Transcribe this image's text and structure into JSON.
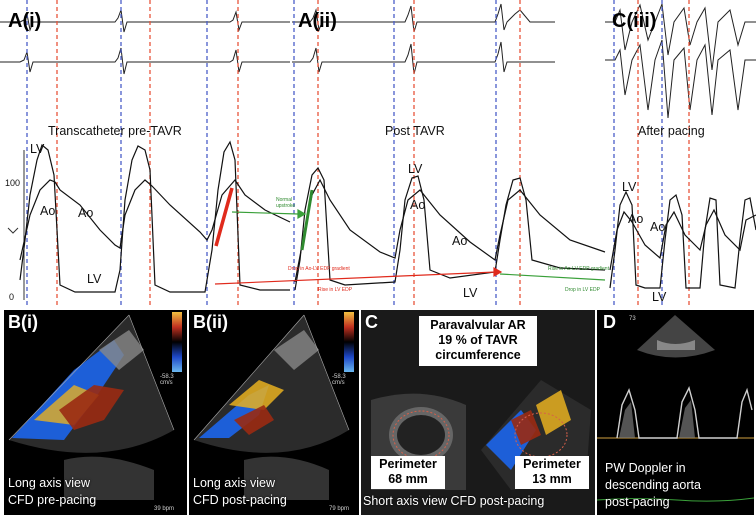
{
  "top": {
    "labels": {
      "a_i": "A(i)",
      "a_ii": "A(ii)",
      "c_iii": "C(iii)"
    },
    "captions": {
      "pre": "Transcatheter pre-TAVR",
      "post": "Post TAVR",
      "pacing": "After pacing"
    },
    "axis": {
      "tick_100": "100",
      "tick_0": "0"
    },
    "traces": {
      "lv1": "LV",
      "ao1": "Ao",
      "ao2": "Ao",
      "lv2": "LV",
      "lv3": "LV",
      "ao3": "Ao",
      "ao4": "Ao",
      "lv4": "LV",
      "lv5": "LV",
      "ao5": "Ao",
      "ao6": "Ao",
      "lv6": "LV"
    },
    "annotations": {
      "normal_upstroke": "Normal upstroke",
      "drop_ao_lv_gradient": "Drop in Ao-LV EDP gradient",
      "rise_lv_edp": "Rise in LV EDP",
      "rise_ao_lv_gradient": "Rise in Ao-LV EDP gradient",
      "drop_lv_edp": "Drop in LV EDP"
    },
    "colors": {
      "red_marker": "#e8553b",
      "blue_marker": "#4a5ec8",
      "red_arrow": "#e02a1c",
      "green_arrow": "#3aa03a"
    }
  },
  "panels": {
    "b_i": {
      "label": "B(i)",
      "caption_line1": "Long axis view",
      "caption_line2": "CFD pre-pacing",
      "bpm": "39 bpm",
      "scale": "-58.3 cm/s"
    },
    "b_ii": {
      "label": "B(ii)",
      "caption_line1": "Long axis view",
      "caption_line2": "CFD post-pacing",
      "bpm": "79 bpm",
      "scale": "-58.3 cm/s"
    },
    "c": {
      "label": "C",
      "title_line1": "Paravalvular AR",
      "title_line2": "19 % of TAVR",
      "title_line3": "circumference",
      "perim1_label": "Perimeter",
      "perim1_value": "68 mm",
      "perim2_label": "Perimeter",
      "perim2_value": "13 mm",
      "caption": "Short axis view CFD post-pacing"
    },
    "d": {
      "label": "D",
      "caption_line1": "PW Doppler in",
      "caption_line2": "descending aorta",
      "caption_line3": "post-pacing",
      "mode": "73"
    }
  }
}
